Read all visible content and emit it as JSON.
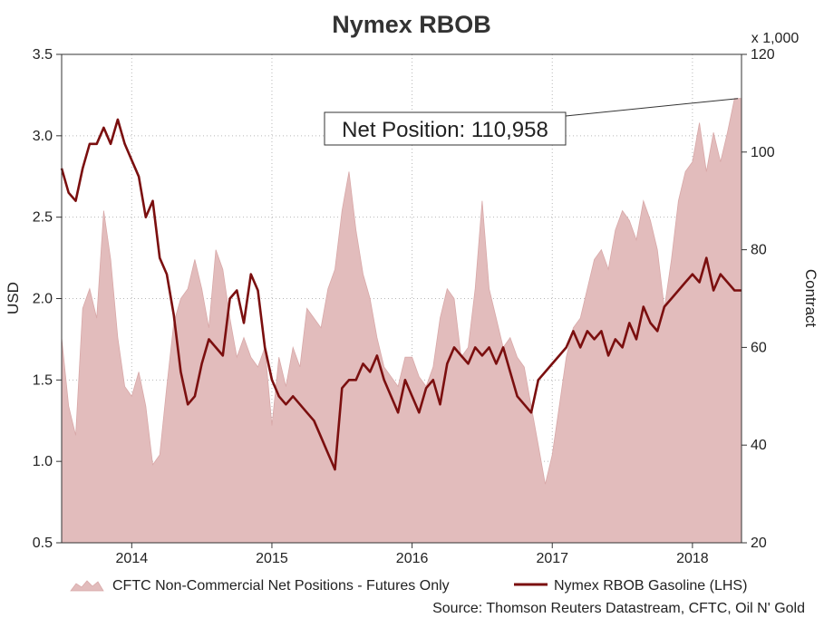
{
  "chart_data": {
    "type": "area",
    "title": "Nymex RBOB",
    "x_tick_labels": [
      "2014",
      "2015",
      "2016",
      "2017",
      "2018"
    ],
    "x_tick_dates": [
      2014.0,
      2015.0,
      2016.0,
      2017.0,
      2018.0
    ],
    "xlim": [
      2013.5,
      2018.35
    ],
    "left_axis": {
      "label": "USD",
      "ylim": [
        0.5,
        3.5
      ],
      "ticks": [
        "0.5",
        "1.0",
        "1.5",
        "2.0",
        "2.5",
        "3.0",
        "3.5"
      ]
    },
    "right_axis": {
      "label": "Contract",
      "multiplier_label": "x 1,000",
      "ylim": [
        20,
        120
      ],
      "ticks": [
        "20",
        "40",
        "60",
        "80",
        "100",
        "120"
      ]
    },
    "grid": true,
    "legend_position": "bottom",
    "series": [
      {
        "name": "CFTC Non-Commercial Net Positions - Futures Only",
        "axis": "right",
        "kind": "area",
        "color": "#e2bcbc",
        "x": [
          2013.5,
          2013.55,
          2013.6,
          2013.65,
          2013.7,
          2013.75,
          2013.8,
          2013.85,
          2013.9,
          2013.95,
          2014.0,
          2014.05,
          2014.1,
          2014.15,
          2014.2,
          2014.25,
          2014.3,
          2014.35,
          2014.4,
          2014.45,
          2014.5,
          2014.55,
          2014.6,
          2014.65,
          2014.7,
          2014.75,
          2014.8,
          2014.85,
          2014.9,
          2014.95,
          2015.0,
          2015.05,
          2015.1,
          2015.15,
          2015.2,
          2015.25,
          2015.3,
          2015.35,
          2015.4,
          2015.45,
          2015.5,
          2015.55,
          2015.6,
          2015.65,
          2015.7,
          2015.75,
          2015.8,
          2015.85,
          2015.9,
          2015.95,
          2016.0,
          2016.05,
          2016.1,
          2016.15,
          2016.2,
          2016.25,
          2016.3,
          2016.35,
          2016.4,
          2016.45,
          2016.5,
          2016.55,
          2016.6,
          2016.65,
          2016.7,
          2016.75,
          2016.8,
          2016.85,
          2016.9,
          2016.95,
          2017.0,
          2017.05,
          2017.1,
          2017.15,
          2017.2,
          2017.25,
          2017.3,
          2017.35,
          2017.4,
          2017.45,
          2017.5,
          2017.55,
          2017.6,
          2017.65,
          2017.7,
          2017.75,
          2017.8,
          2017.85,
          2017.9,
          2017.95,
          2018.0,
          2018.05,
          2018.1,
          2018.15,
          2018.2,
          2018.25,
          2018.3,
          2018.35
        ],
        "values": [
          62,
          48,
          42,
          68,
          72,
          66,
          88,
          78,
          62,
          52,
          50,
          55,
          48,
          36,
          38,
          52,
          65,
          70,
          72,
          78,
          72,
          64,
          80,
          76,
          66,
          58,
          62,
          58,
          56,
          60,
          44,
          58,
          52,
          60,
          56,
          68,
          66,
          64,
          72,
          76,
          88,
          96,
          84,
          75,
          70,
          62,
          56,
          54,
          52,
          58,
          58,
          54,
          52,
          56,
          66,
          72,
          70,
          58,
          60,
          72,
          90,
          72,
          66,
          60,
          62,
          58,
          56,
          48,
          40,
          32,
          38,
          48,
          58,
          64,
          66,
          72,
          78,
          80,
          76,
          84,
          88,
          86,
          82,
          90,
          86,
          80,
          68,
          78,
          90,
          96,
          98,
          106,
          96,
          104,
          98,
          104,
          110.958,
          110.958
        ]
      },
      {
        "name": "Nymex RBOB Gasoline (LHS)",
        "axis": "left",
        "kind": "line",
        "color": "#7b0f0f",
        "x": [
          2013.5,
          2013.55,
          2013.6,
          2013.65,
          2013.7,
          2013.75,
          2013.8,
          2013.85,
          2013.9,
          2013.95,
          2014.0,
          2014.05,
          2014.1,
          2014.15,
          2014.2,
          2014.25,
          2014.3,
          2014.35,
          2014.4,
          2014.45,
          2014.5,
          2014.55,
          2014.6,
          2014.65,
          2014.7,
          2014.75,
          2014.8,
          2014.85,
          2014.9,
          2014.95,
          2015.0,
          2015.05,
          2015.1,
          2015.15,
          2015.2,
          2015.25,
          2015.3,
          2015.35,
          2015.4,
          2015.45,
          2015.5,
          2015.55,
          2015.6,
          2015.65,
          2015.7,
          2015.75,
          2015.8,
          2015.85,
          2015.9,
          2015.95,
          2016.0,
          2016.05,
          2016.1,
          2016.15,
          2016.2,
          2016.25,
          2016.3,
          2016.35,
          2016.4,
          2016.45,
          2016.5,
          2016.55,
          2016.6,
          2016.65,
          2016.7,
          2016.75,
          2016.8,
          2016.85,
          2016.9,
          2016.95,
          2017.0,
          2017.05,
          2017.1,
          2017.15,
          2017.2,
          2017.25,
          2017.3,
          2017.35,
          2017.4,
          2017.45,
          2017.5,
          2017.55,
          2017.6,
          2017.65,
          2017.7,
          2017.75,
          2017.8,
          2017.85,
          2017.9,
          2017.95,
          2018.0,
          2018.05,
          2018.1,
          2018.15,
          2018.2,
          2018.25,
          2018.3,
          2018.35
        ],
        "values": [
          2.8,
          2.65,
          2.6,
          2.8,
          2.95,
          2.95,
          3.05,
          2.95,
          3.1,
          2.95,
          2.85,
          2.75,
          2.5,
          2.6,
          2.25,
          2.15,
          1.9,
          1.55,
          1.35,
          1.4,
          1.6,
          1.75,
          1.7,
          1.65,
          2.0,
          2.05,
          1.85,
          2.15,
          2.05,
          1.7,
          1.5,
          1.4,
          1.35,
          1.4,
          1.35,
          1.3,
          1.25,
          1.15,
          1.05,
          0.95,
          1.45,
          1.5,
          1.5,
          1.6,
          1.55,
          1.65,
          1.5,
          1.4,
          1.3,
          1.5,
          1.4,
          1.3,
          1.45,
          1.5,
          1.35,
          1.6,
          1.7,
          1.65,
          1.6,
          1.7,
          1.65,
          1.7,
          1.6,
          1.7,
          1.55,
          1.4,
          1.35,
          1.3,
          1.5,
          1.55,
          1.6,
          1.65,
          1.7,
          1.8,
          1.7,
          1.8,
          1.75,
          1.8,
          1.65,
          1.75,
          1.7,
          1.85,
          1.75,
          1.95,
          1.85,
          1.8,
          1.95,
          2.0,
          2.05,
          2.1,
          2.15,
          2.1,
          2.25,
          2.05,
          2.15,
          2.1,
          2.05,
          2.05
        ]
      }
    ],
    "annotation": {
      "text": "Net Position: 110,958"
    }
  },
  "legend": {
    "area_label": "CFTC Non-Commercial Net Positions - Futures Only",
    "line_label": "Nymex RBOB Gasoline (LHS)"
  },
  "source": "Source: Thomson Reuters Datastream, CFTC, Oil N' Gold",
  "colors": {
    "area": "#e2bcbc",
    "area_stroke": "#d8a8a8",
    "line": "#7b0f0f",
    "axis": "#333333"
  }
}
